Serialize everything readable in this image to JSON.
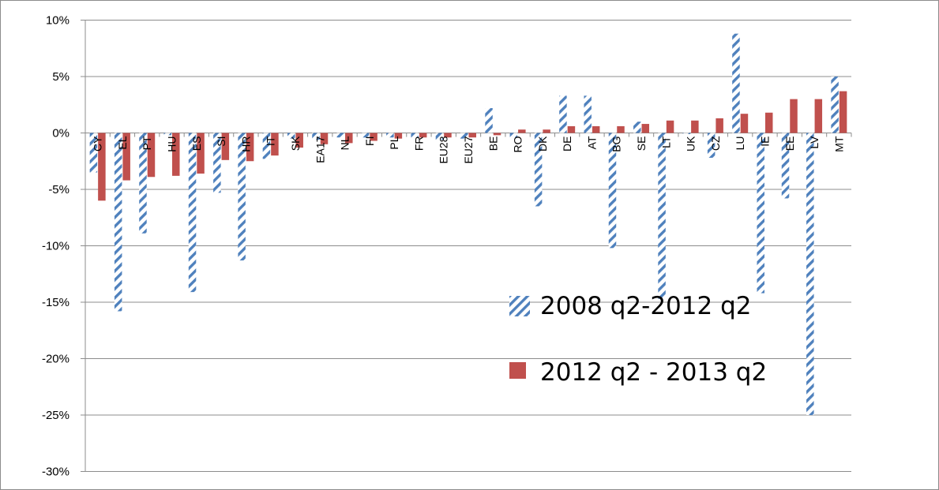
{
  "chart_data": {
    "type": "bar",
    "categories": [
      "CY",
      "EL",
      "PT",
      "HU",
      "ES",
      "SI",
      "HR",
      "IT",
      "SK",
      "EA17",
      "NL",
      "FI",
      "PL",
      "FR",
      "EU28",
      "EU27",
      "BE",
      "RO",
      "DK",
      "DE",
      "AT",
      "BG",
      "SE",
      "LT",
      "UK",
      "CZ",
      "LU",
      "IE",
      "EE",
      "LV",
      "MT"
    ],
    "series": [
      {
        "name": "2008 q2-2012 q2",
        "color": "#4f81bd",
        "pattern": "diagonal-stripes",
        "values": [
          -3.5,
          -15.8,
          -8.9,
          -0.2,
          -14.1,
          -5.3,
          -11.3,
          -2.3,
          -0.5,
          -0.6,
          -0.4,
          -0.4,
          -0.4,
          -0.4,
          -0.6,
          -0.5,
          2.2,
          -0.4,
          -6.5,
          3.3,
          3.3,
          -10.2,
          1.0,
          -14.7,
          -0.1,
          -2.2,
          8.8,
          -14.2,
          -5.8,
          -25.0,
          5.0
        ]
      },
      {
        "name": "2012 q2 - 2013 q2",
        "color": "#c0504d",
        "pattern": "solid",
        "values": [
          -6.0,
          -4.2,
          -3.9,
          -3.8,
          -3.6,
          -2.4,
          -2.5,
          -2.0,
          -1.3,
          -1.0,
          -0.9,
          -0.7,
          -0.5,
          -0.4,
          -0.4,
          -0.4,
          -0.2,
          0.3,
          0.3,
          0.6,
          0.6,
          0.6,
          0.8,
          1.1,
          1.1,
          1.3,
          1.7,
          1.8,
          3.0,
          3.0,
          3.7
        ]
      }
    ],
    "y_ticks": [
      "10%",
      "5%",
      "0%",
      "-5%",
      "-10%",
      "-15%",
      "-20%",
      "-25%",
      "-30%"
    ],
    "ylim": [
      -30,
      10
    ],
    "grid": true,
    "legend_position": "right-inside"
  }
}
